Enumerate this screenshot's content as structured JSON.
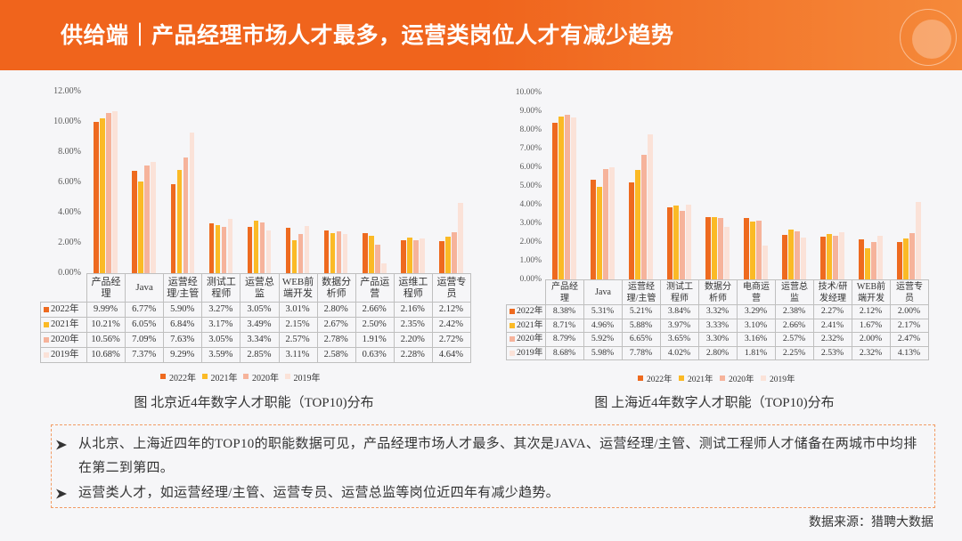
{
  "header": {
    "title": "供给端｜产品经理市场人才最多，运营类岗位人才有减少趋势"
  },
  "colors": {
    "header": "#F0641C",
    "header_light": "#F5893A",
    "note_border": "#F29B63"
  },
  "chart_data": [
    {
      "type": "bar",
      "caption": "图 北京近4年数字人才职能（TOP10)分布",
      "unit": "%",
      "ylim": [
        0,
        12
      ],
      "yticks": [
        0,
        2,
        4,
        6,
        8,
        10,
        12
      ],
      "grid": false,
      "legend": "bottom",
      "data_table": true,
      "categories": [
        "产品经理",
        "Java",
        "运营经理/主管",
        "测试工程师",
        "运营总监",
        "WEB前端开发",
        "数据分析师",
        "产品运营",
        "运维工程师",
        "运营专员"
      ],
      "series": [
        {
          "name": "2022年",
          "color": "#EE6A1F",
          "values": [
            9.99,
            6.77,
            5.9,
            3.27,
            3.05,
            3.01,
            2.8,
            2.66,
            2.16,
            2.12
          ]
        },
        {
          "name": "2021年",
          "color": "#FBBA26",
          "values": [
            10.21,
            6.05,
            6.84,
            3.17,
            3.49,
            2.15,
            2.67,
            2.5,
            2.35,
            2.42
          ]
        },
        {
          "name": "2020年",
          "color": "#F6B39B",
          "values": [
            10.56,
            7.09,
            7.63,
            3.05,
            3.34,
            2.57,
            2.78,
            1.91,
            2.2,
            2.72
          ]
        },
        {
          "name": "2019年",
          "color": "#FBE2D8",
          "values": [
            10.68,
            7.37,
            9.29,
            3.59,
            2.85,
            3.11,
            2.58,
            0.63,
            2.28,
            4.64
          ]
        }
      ]
    },
    {
      "type": "bar",
      "caption": "图 上海近4年数字人才职能（TOP10)分布",
      "unit": "%",
      "ylim": [
        0,
        10
      ],
      "yticks": [
        0,
        1,
        2,
        3,
        4,
        5,
        6,
        7,
        8,
        9,
        10
      ],
      "grid": false,
      "legend": "bottom",
      "data_table": true,
      "categories": [
        "产品经理",
        "Java",
        "运营经理/主管",
        "测试工程师",
        "数据分析师",
        "电商运营",
        "运营总监",
        "技术/研发经理",
        "WEB前端开发",
        "运营专员"
      ],
      "series": [
        {
          "name": "2022年",
          "color": "#EE6A1F",
          "values": [
            8.38,
            5.31,
            5.21,
            3.84,
            3.32,
            3.29,
            2.38,
            2.27,
            2.12,
            2.0
          ]
        },
        {
          "name": "2021年",
          "color": "#FBBA26",
          "values": [
            8.71,
            4.96,
            5.88,
            3.97,
            3.33,
            3.1,
            2.66,
            2.41,
            1.67,
            2.17
          ]
        },
        {
          "name": "2020年",
          "color": "#F6B39B",
          "values": [
            8.79,
            5.92,
            6.65,
            3.65,
            3.3,
            3.16,
            2.57,
            2.32,
            2.0,
            2.47
          ]
        },
        {
          "name": "2019年",
          "color": "#FBE2D8",
          "values": [
            8.68,
            5.98,
            7.78,
            4.02,
            2.8,
            1.81,
            2.25,
            2.53,
            2.32,
            4.13
          ]
        }
      ]
    }
  ],
  "notes": {
    "bullet_icon": "arrowhead-bullet",
    "items": [
      "从北京、上海近四年的TOP10的职能数据可见，产品经理市场人才最多、其次是JAVA、运营经理/主管、测试工程师人才储备在两城市中均排在第二到第四。",
      "运营类人才，如运营经理/主管、运营专员、运营总监等岗位近四年有减少趋势。"
    ]
  },
  "footer": {
    "source": "数据来源：猎聘大数据"
  }
}
